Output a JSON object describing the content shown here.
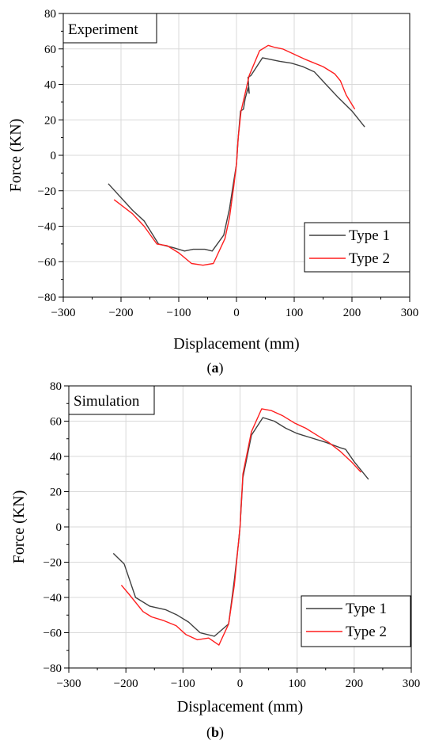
{
  "chart_data": [
    {
      "type": "line",
      "title": "Experiment",
      "panel_label": "(a)",
      "xlabel": "Displacement (mm)",
      "ylabel": "Force (KN)",
      "xlim": [
        -300,
        300
      ],
      "ylim": [
        -80,
        80
      ],
      "xticks": [
        -300,
        -200,
        -100,
        0,
        100,
        200,
        300
      ],
      "yticks": [
        -80,
        -60,
        -40,
        -20,
        0,
        20,
        40,
        60,
        80
      ],
      "xtick_labels": [
        "−300",
        "−200",
        "−100",
        "0",
        "100",
        "200",
        "300"
      ],
      "ytick_labels": [
        "−80",
        "−60",
        "−40",
        "−20",
        "0",
        "20",
        "40",
        "60",
        "80"
      ],
      "grid": true,
      "legend_position": "bottom-right",
      "series": [
        {
          "name": "Type 1",
          "color": "#404040",
          "x": [
            -222,
            -180,
            -160,
            -135,
            -110,
            -90,
            -75,
            -55,
            -42,
            -22,
            -12,
            -5,
            0,
            3,
            7,
            12,
            15,
            20,
            22,
            20,
            25,
            35,
            45,
            60,
            75,
            95,
            115,
            135,
            155,
            175,
            200,
            222
          ],
          "y": [
            -16,
            -31,
            -37,
            -50,
            -52,
            -54,
            -53,
            -53,
            -54,
            -45,
            -30,
            -15,
            -5,
            10,
            25,
            26,
            32,
            38,
            35,
            44,
            45,
            50,
            55,
            54,
            53,
            52,
            50,
            47,
            40,
            33,
            25,
            16
          ]
        },
        {
          "name": "Type 2",
          "color": "#ff1f1f",
          "x": [
            -212,
            -180,
            -160,
            -138,
            -120,
            -100,
            -78,
            -58,
            -40,
            -20,
            -12,
            -5,
            0,
            3,
            8,
            15,
            22,
            40,
            55,
            65,
            80,
            100,
            120,
            150,
            170,
            180,
            190,
            205
          ],
          "y": [
            -25,
            -33,
            -40,
            -50,
            -51,
            -55,
            -61,
            -62,
            -61,
            -47,
            -35,
            -18,
            -5,
            10,
            25,
            35,
            45,
            59,
            62,
            61,
            60,
            57,
            54,
            50,
            46,
            42,
            34,
            26
          ]
        }
      ]
    },
    {
      "type": "line",
      "title": "Simulation",
      "panel_label": "(b)",
      "xlabel": "Displacement (mm)",
      "ylabel": "Force (KN)",
      "xlim": [
        -300,
        300
      ],
      "ylim": [
        -80,
        80
      ],
      "xticks": [
        -300,
        -200,
        -100,
        0,
        100,
        200,
        300
      ],
      "yticks": [
        -80,
        -60,
        -40,
        -20,
        0,
        20,
        40,
        60,
        80
      ],
      "xtick_labels": [
        "−300",
        "−200",
        "−100",
        "0",
        "100",
        "200",
        "300"
      ],
      "ytick_labels": [
        "−80",
        "−60",
        "−40",
        "−20",
        "0",
        "20",
        "40",
        "60",
        "80"
      ],
      "grid": true,
      "legend_position": "bottom-right",
      "series": [
        {
          "name": "Type 1",
          "color": "#404040",
          "x": [
            -222,
            -203,
            -183,
            -158,
            -130,
            -110,
            -90,
            -70,
            -45,
            -20,
            -10,
            -3,
            0,
            5,
            20,
            40,
            60,
            80,
            100,
            120,
            150,
            175,
            185,
            200,
            225
          ],
          "y": [
            -15,
            -21,
            -40,
            -45,
            -47,
            -50,
            -54,
            -60,
            -62,
            -55,
            -30,
            -10,
            0,
            28,
            52,
            62,
            60,
            56,
            53,
            51,
            48,
            45,
            44,
            37,
            27
          ]
        },
        {
          "name": "Type 2",
          "color": "#ff1f1f",
          "x": [
            -208,
            -195,
            -170,
            -155,
            -135,
            -112,
            -95,
            -75,
            -55,
            -37,
            -20,
            -10,
            -3,
            0,
            5,
            20,
            38,
            55,
            75,
            95,
            115,
            135,
            155,
            175,
            195,
            212
          ],
          "y": [
            -33,
            -38,
            -48,
            -51,
            -53,
            -56,
            -61,
            -64,
            -63,
            -67,
            -55,
            -33,
            -10,
            0,
            30,
            54,
            67,
            66,
            63,
            59,
            56,
            52,
            48,
            43,
            37,
            31
          ]
        }
      ]
    }
  ]
}
